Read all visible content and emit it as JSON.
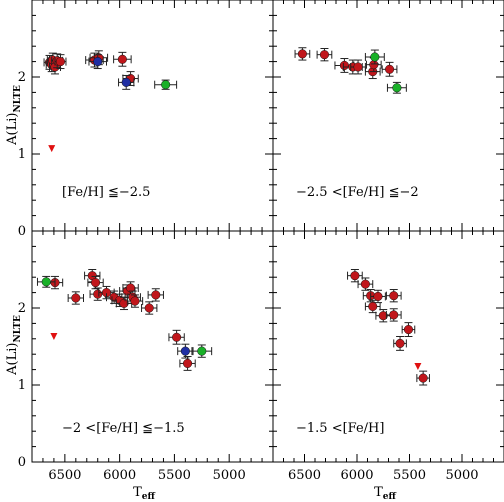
{
  "chart_data": {
    "type": "scatter",
    "x_label": {
      "main": "T",
      "sub": "eff"
    },
    "y_label": {
      "main": "A(Li)",
      "sub": "NLTE"
    },
    "xlim": [
      6800,
      4600
    ],
    "x_reversed": true,
    "x_ticks": [
      6500,
      6000,
      5500,
      5000
    ],
    "colors": {
      "red": "#c0161b",
      "blue": "#1f2ea3",
      "green": "#19b028",
      "triangle": "#e01010"
    },
    "panels": [
      {
        "id": "top-left",
        "label": "[Fe/H] ≦−2.5",
        "ylim": [
          0,
          3
        ],
        "y_ticks": [
          0,
          1,
          2
        ],
        "points": [
          {
            "x": 6640,
            "y": 2.19,
            "xerr": 50,
            "yerr": 0.09,
            "color": "red"
          },
          {
            "x": 6620,
            "y": 2.16,
            "xerr": 50,
            "yerr": 0.09,
            "color": "red"
          },
          {
            "x": 6610,
            "y": 2.22,
            "xerr": 50,
            "yerr": 0.09,
            "color": "red"
          },
          {
            "x": 6590,
            "y": 2.13,
            "xerr": 50,
            "yerr": 0.09,
            "color": "red"
          },
          {
            "x": 6570,
            "y": 2.21,
            "xerr": 50,
            "yerr": 0.09,
            "color": "red"
          },
          {
            "x": 6540,
            "y": 2.2,
            "xerr": 50,
            "yerr": 0.09,
            "color": "red"
          },
          {
            "x": 6230,
            "y": 2.22,
            "xerr": 80,
            "yerr": 0.09,
            "color": "red"
          },
          {
            "x": 6190,
            "y": 2.25,
            "xerr": 80,
            "yerr": 0.09,
            "color": "red"
          },
          {
            "x": 5975,
            "y": 2.23,
            "xerr": 80,
            "yerr": 0.09,
            "color": "red"
          },
          {
            "x": 5900,
            "y": 1.98,
            "xerr": 70,
            "yerr": 0.09,
            "color": "red"
          },
          {
            "x": 6200,
            "y": 2.2,
            "xerr": 80,
            "yerr": 0.09,
            "color": "blue"
          },
          {
            "x": 5940,
            "y": 1.93,
            "xerr": 70,
            "yerr": 0.09,
            "color": "blue"
          },
          {
            "x": 5580,
            "y": 1.9,
            "xerr": 100,
            "yerr": 0.06,
            "color": "green"
          }
        ],
        "upper_limits": [
          {
            "x": 6620,
            "y": 1.07
          }
        ]
      },
      {
        "id": "top-right",
        "label": "−2.5 <[Fe/H] ≦−2",
        "ylim": [
          0,
          3
        ],
        "y_ticks": [
          0,
          1,
          2
        ],
        "points": [
          {
            "x": 6520,
            "y": 2.3,
            "xerr": 70,
            "yerr": 0.08,
            "color": "red"
          },
          {
            "x": 6310,
            "y": 2.29,
            "xerr": 70,
            "yerr": 0.08,
            "color": "red"
          },
          {
            "x": 6120,
            "y": 2.15,
            "xerr": 90,
            "yerr": 0.09,
            "color": "red"
          },
          {
            "x": 6040,
            "y": 2.13,
            "xerr": 90,
            "yerr": 0.09,
            "color": "red"
          },
          {
            "x": 5990,
            "y": 2.13,
            "xerr": 70,
            "yerr": 0.09,
            "color": "red"
          },
          {
            "x": 5850,
            "y": 2.07,
            "xerr": 70,
            "yerr": 0.09,
            "color": "red"
          },
          {
            "x": 5840,
            "y": 2.16,
            "xerr": 70,
            "yerr": 0.09,
            "color": "red"
          },
          {
            "x": 5690,
            "y": 2.1,
            "xerr": 70,
            "yerr": 0.09,
            "color": "red"
          },
          {
            "x": 5830,
            "y": 2.26,
            "xerr": 90,
            "yerr": 0.09,
            "color": "green"
          },
          {
            "x": 5620,
            "y": 1.86,
            "xerr": 90,
            "yerr": 0.07,
            "color": "green"
          }
        ],
        "upper_limits": []
      },
      {
        "id": "bottom-left",
        "label": "−2 <[Fe/H] ≦−1.5",
        "ylim": [
          0,
          3
        ],
        "y_ticks": [
          0,
          1,
          2
        ],
        "points": [
          {
            "x": 6590,
            "y": 2.33,
            "xerr": 70,
            "yerr": 0.08,
            "color": "red"
          },
          {
            "x": 6400,
            "y": 2.13,
            "xerr": 70,
            "yerr": 0.08,
            "color": "red"
          },
          {
            "x": 6250,
            "y": 2.42,
            "xerr": 70,
            "yerr": 0.08,
            "color": "red"
          },
          {
            "x": 6220,
            "y": 2.33,
            "xerr": 70,
            "yerr": 0.08,
            "color": "red"
          },
          {
            "x": 6200,
            "y": 2.18,
            "xerr": 70,
            "yerr": 0.08,
            "color": "red"
          },
          {
            "x": 6120,
            "y": 2.2,
            "xerr": 70,
            "yerr": 0.08,
            "color": "red"
          },
          {
            "x": 6050,
            "y": 2.14,
            "xerr": 70,
            "yerr": 0.08,
            "color": "red"
          },
          {
            "x": 6000,
            "y": 2.1,
            "xerr": 70,
            "yerr": 0.08,
            "color": "red"
          },
          {
            "x": 5960,
            "y": 2.06,
            "xerr": 70,
            "yerr": 0.08,
            "color": "red"
          },
          {
            "x": 5930,
            "y": 2.22,
            "xerr": 70,
            "yerr": 0.08,
            "color": "red"
          },
          {
            "x": 5900,
            "y": 2.26,
            "xerr": 70,
            "yerr": 0.08,
            "color": "red"
          },
          {
            "x": 5880,
            "y": 2.14,
            "xerr": 70,
            "yerr": 0.08,
            "color": "red"
          },
          {
            "x": 5860,
            "y": 2.09,
            "xerr": 70,
            "yerr": 0.08,
            "color": "red"
          },
          {
            "x": 5730,
            "y": 2.0,
            "xerr": 70,
            "yerr": 0.08,
            "color": "red"
          },
          {
            "x": 5670,
            "y": 2.17,
            "xerr": 70,
            "yerr": 0.08,
            "color": "red"
          },
          {
            "x": 5480,
            "y": 1.62,
            "xerr": 70,
            "yerr": 0.09,
            "color": "red"
          },
          {
            "x": 5380,
            "y": 1.28,
            "xerr": 70,
            "yerr": 0.09,
            "color": "red"
          },
          {
            "x": 5400,
            "y": 1.44,
            "xerr": 70,
            "yerr": 0.09,
            "color": "blue"
          },
          {
            "x": 6670,
            "y": 2.34,
            "xerr": 80,
            "yerr": 0.07,
            "color": "green"
          },
          {
            "x": 5250,
            "y": 1.44,
            "xerr": 90,
            "yerr": 0.08,
            "color": "green"
          }
        ],
        "upper_limits": [
          {
            "x": 6600,
            "y": 1.63
          }
        ]
      },
      {
        "id": "bottom-right",
        "label": "−1.5 <[Fe/H]",
        "ylim": [
          0,
          3
        ],
        "y_ticks": [
          0,
          1,
          2
        ],
        "points": [
          {
            "x": 6020,
            "y": 2.42,
            "xerr": 70,
            "yerr": 0.08,
            "color": "red"
          },
          {
            "x": 5920,
            "y": 2.31,
            "xerr": 70,
            "yerr": 0.08,
            "color": "red"
          },
          {
            "x": 5870,
            "y": 2.16,
            "xerr": 70,
            "yerr": 0.08,
            "color": "red"
          },
          {
            "x": 5800,
            "y": 2.15,
            "xerr": 70,
            "yerr": 0.08,
            "color": "red"
          },
          {
            "x": 5850,
            "y": 2.02,
            "xerr": 70,
            "yerr": 0.08,
            "color": "red"
          },
          {
            "x": 5750,
            "y": 1.9,
            "xerr": 70,
            "yerr": 0.08,
            "color": "red"
          },
          {
            "x": 5650,
            "y": 2.16,
            "xerr": 70,
            "yerr": 0.08,
            "color": "red"
          },
          {
            "x": 5650,
            "y": 1.91,
            "xerr": 70,
            "yerr": 0.08,
            "color": "red"
          },
          {
            "x": 5590,
            "y": 1.54,
            "xerr": 60,
            "yerr": 0.09,
            "color": "red"
          },
          {
            "x": 5510,
            "y": 1.72,
            "xerr": 60,
            "yerr": 0.09,
            "color": "red"
          },
          {
            "x": 5370,
            "y": 1.09,
            "xerr": 60,
            "yerr": 0.09,
            "color": "red"
          }
        ],
        "upper_limits": [
          {
            "x": 5420,
            "y": 1.24
          }
        ]
      }
    ]
  }
}
